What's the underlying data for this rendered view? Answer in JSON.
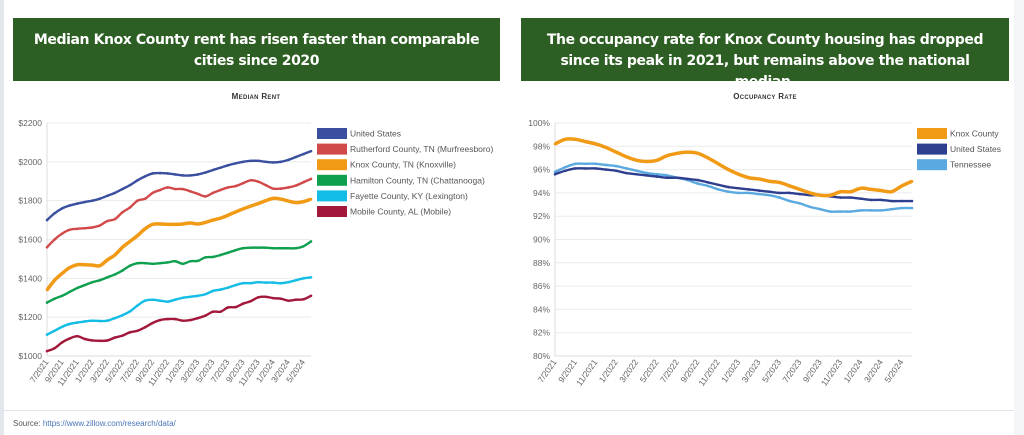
{
  "banners": {
    "left": "Median Knox County rent has risen faster than comparable cities since 2020",
    "right": "The occupancy rate for Knox County housing has dropped since its peak in 2021, but remains above the national median."
  },
  "source": {
    "label": "Source:",
    "link": "https://www.zillow.com/research/data/"
  },
  "chart_data": [
    {
      "type": "line",
      "title": "Median Rent",
      "xlabel": "",
      "ylabel": "",
      "ylim": [
        1000,
        2200
      ],
      "yticks": [
        "$1000",
        "$1200",
        "$1400",
        "$1600",
        "$1800",
        "$2000",
        "$2200"
      ],
      "grid": true,
      "legend": "right",
      "x": [
        "7/2021",
        "8/2021",
        "9/2021",
        "10/2021",
        "11/2021",
        "12/2021",
        "1/2022",
        "2/2022",
        "3/2022",
        "4/2022",
        "5/2022",
        "6/2022",
        "7/2022",
        "8/2022",
        "9/2022",
        "10/2022",
        "11/2022",
        "12/2022",
        "1/2023",
        "2/2023",
        "3/2023",
        "4/2023",
        "5/2023",
        "6/2023",
        "7/2023",
        "8/2023",
        "9/2023",
        "10/2023",
        "11/2023",
        "12/2023",
        "1/2024",
        "2/2024",
        "3/2024",
        "4/2024",
        "5/2024",
        "6/2024"
      ],
      "xticks": [
        "7/2021",
        "9/2021",
        "11/2021",
        "1/2022",
        "3/2022",
        "5/2022",
        "7/2022",
        "9/2022",
        "11/2022",
        "1/2023",
        "3/2023",
        "5/2023",
        "7/2023",
        "9/2023",
        "11/2023",
        "1/2024",
        "3/2024",
        "5/2024"
      ],
      "series": [
        {
          "name": "United States",
          "color": "#3a4fa0",
          "values": [
            1700,
            1735,
            1760,
            1775,
            1785,
            1793,
            1800,
            1810,
            1825,
            1840,
            1860,
            1880,
            1905,
            1925,
            1940,
            1942,
            1940,
            1935,
            1930,
            1930,
            1935,
            1945,
            1958,
            1970,
            1982,
            1992,
            2000,
            2005,
            2005,
            2000,
            1997,
            2000,
            2010,
            2025,
            2040,
            2055
          ]
        },
        {
          "name": "Rutherford County, TN (Murfreesboro)",
          "color": "#d2494a",
          "values": [
            1560,
            1600,
            1630,
            1650,
            1655,
            1658,
            1662,
            1672,
            1695,
            1705,
            1740,
            1765,
            1800,
            1810,
            1840,
            1855,
            1868,
            1860,
            1860,
            1848,
            1835,
            1822,
            1840,
            1855,
            1868,
            1875,
            1890,
            1905,
            1898,
            1880,
            1862,
            1862,
            1868,
            1878,
            1895,
            1912
          ]
        },
        {
          "name": "Knox County, TN (Knoxville)",
          "color": "#f19a16",
          "values": [
            1340,
            1390,
            1425,
            1455,
            1470,
            1470,
            1468,
            1465,
            1495,
            1520,
            1560,
            1590,
            1620,
            1655,
            1678,
            1680,
            1678,
            1678,
            1680,
            1685,
            1680,
            1688,
            1700,
            1710,
            1725,
            1742,
            1758,
            1772,
            1785,
            1800,
            1812,
            1808,
            1798,
            1790,
            1795,
            1808
          ]
        },
        {
          "name": "Hamilton County, TN (Chattanooga)",
          "color": "#0fa04f",
          "values": [
            1275,
            1295,
            1310,
            1330,
            1350,
            1365,
            1380,
            1390,
            1405,
            1420,
            1440,
            1465,
            1478,
            1478,
            1475,
            1478,
            1482,
            1488,
            1475,
            1488,
            1490,
            1508,
            1510,
            1520,
            1532,
            1545,
            1555,
            1558,
            1558,
            1558,
            1555,
            1555,
            1555,
            1555,
            1565,
            1590
          ]
        },
        {
          "name": "Fayette County, KY (Lexington)",
          "color": "#14bde6",
          "values": [
            1110,
            1130,
            1150,
            1165,
            1172,
            1178,
            1182,
            1180,
            1182,
            1195,
            1210,
            1230,
            1260,
            1285,
            1290,
            1285,
            1280,
            1290,
            1300,
            1305,
            1310,
            1318,
            1335,
            1342,
            1352,
            1365,
            1375,
            1375,
            1380,
            1378,
            1378,
            1375,
            1380,
            1390,
            1400,
            1405
          ]
        },
        {
          "name": "Mobile County, AL (Mobile)",
          "color": "#a3183a",
          "values": [
            1025,
            1040,
            1070,
            1090,
            1102,
            1088,
            1080,
            1078,
            1080,
            1095,
            1105,
            1122,
            1130,
            1148,
            1170,
            1185,
            1190,
            1190,
            1182,
            1185,
            1195,
            1208,
            1228,
            1228,
            1250,
            1252,
            1270,
            1282,
            1302,
            1305,
            1298,
            1295,
            1285,
            1290,
            1292,
            1310
          ]
        }
      ]
    },
    {
      "type": "line",
      "title": "Occupancy Rate",
      "xlabel": "",
      "ylabel": "",
      "ylim": [
        80,
        100
      ],
      "yticks": [
        "80%",
        "82%",
        "84%",
        "86%",
        "88%",
        "90%",
        "92%",
        "94%",
        "96%",
        "98%",
        "100%"
      ],
      "grid": true,
      "legend": "right",
      "x": [
        "7/2021",
        "8/2021",
        "9/2021",
        "10/2021",
        "11/2021",
        "12/2021",
        "1/2022",
        "2/2022",
        "3/2022",
        "4/2022",
        "5/2022",
        "6/2022",
        "7/2022",
        "8/2022",
        "9/2022",
        "10/2022",
        "11/2022",
        "12/2022",
        "1/2023",
        "2/2023",
        "3/2023",
        "4/2023",
        "5/2023",
        "6/2023",
        "7/2023",
        "8/2023",
        "9/2023",
        "10/2023",
        "11/2023",
        "12/2023",
        "1/2024",
        "2/2024",
        "3/2024",
        "4/2024",
        "5/2024",
        "6/2024"
      ],
      "xticks": [
        "7/2021",
        "9/2021",
        "11/2021",
        "1/2022",
        "3/2022",
        "5/2022",
        "7/2022",
        "9/2022",
        "11/2022",
        "1/2023",
        "3/2023",
        "5/2023",
        "7/2023",
        "9/2023",
        "11/2023",
        "1/2024",
        "3/2024",
        "5/2024"
      ],
      "series": [
        {
          "name": "Knox County",
          "color": "#f19a16",
          "values": [
            98.2,
            98.6,
            98.6,
            98.4,
            98.2,
            97.9,
            97.5,
            97.1,
            96.8,
            96.7,
            96.8,
            97.2,
            97.4,
            97.5,
            97.4,
            97.0,
            96.5,
            96.0,
            95.6,
            95.3,
            95.2,
            95.0,
            94.9,
            94.6,
            94.3,
            94.0,
            93.8,
            93.8,
            94.1,
            94.1,
            94.4,
            94.3,
            94.2,
            94.1,
            94.6,
            95.0
          ]
        },
        {
          "name": "United States",
          "color": "#2e3f8f",
          "values": [
            95.6,
            95.9,
            96.1,
            96.1,
            96.1,
            96.0,
            95.9,
            95.7,
            95.6,
            95.5,
            95.4,
            95.3,
            95.3,
            95.2,
            95.1,
            94.9,
            94.7,
            94.5,
            94.4,
            94.3,
            94.2,
            94.1,
            94.0,
            94.0,
            93.9,
            93.8,
            93.8,
            93.7,
            93.6,
            93.6,
            93.5,
            93.4,
            93.4,
            93.3,
            93.3,
            93.3
          ]
        },
        {
          "name": "Tennessee",
          "color": "#5aa9e0",
          "values": [
            95.8,
            96.2,
            96.5,
            96.5,
            96.5,
            96.4,
            96.3,
            96.1,
            95.9,
            95.7,
            95.6,
            95.5,
            95.3,
            95.1,
            94.8,
            94.6,
            94.3,
            94.1,
            94.0,
            94.0,
            93.9,
            93.8,
            93.6,
            93.3,
            93.1,
            92.8,
            92.6,
            92.4,
            92.4,
            92.4,
            92.5,
            92.5,
            92.5,
            92.6,
            92.7,
            92.7
          ]
        }
      ]
    }
  ]
}
